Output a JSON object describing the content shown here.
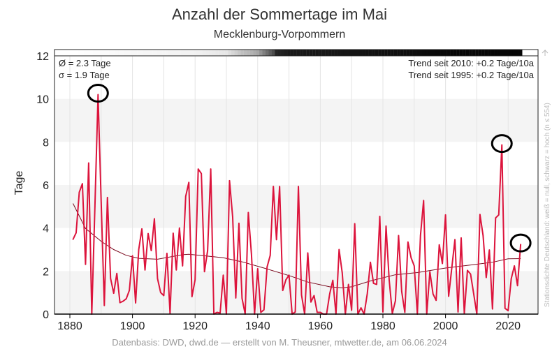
{
  "title": "Anzahl der Sommertage im Mai",
  "subtitle": "Mecklenburg-Vorpommern",
  "footer": "Datenbasis: DWD, dwd.de — erstellt von M. Theusner, mtwetter.de, am 06.06.2024",
  "side_note": "Stationsdichte Deutschland: weiß = null, schwarz = hoch (n ≤ 554)",
  "stats": {
    "mean": "Ø = 2.3 Tage",
    "sd": "σ = 1.9 Tage"
  },
  "trends": {
    "t2010": "Trend seit 2010: +0.2 Tage/10a",
    "t1995": "Trend seit 1995: +0.2 Tage/10a"
  },
  "colors": {
    "series": "#dc143c",
    "trend": "#7a0a1e",
    "band": "#f4f4f4",
    "grid": "#e4e4e4",
    "circle": "#000000"
  },
  "chart_data": {
    "type": "line",
    "title": "Anzahl der Sommertage im Mai",
    "ylabel": "Tage",
    "xlabel": "",
    "xlim": [
      1876,
      2030
    ],
    "ylim": [
      0,
      12
    ],
    "xticks": [
      1880,
      1900,
      1920,
      1940,
      1960,
      1980,
      2000,
      2020
    ],
    "yticks": [
      0,
      2,
      4,
      6,
      8,
      10,
      12
    ],
    "x_start": 1881,
    "values": [
      3.47,
      3.78,
      5.66,
      6.06,
      2.31,
      7.02,
      0,
      5.0,
      10.2,
      5.2,
      0.4,
      5.42,
      1.66,
      0.97,
      1.89,
      0.53,
      0.6,
      0.71,
      1.1,
      2.71,
      0.52,
      3.0,
      3.96,
      2.05,
      3.74,
      2.95,
      4.43,
      1.65,
      1.0,
      0.86,
      2.82,
      0.03,
      3.76,
      2.05,
      4.0,
      2.24,
      5.47,
      6.12,
      0.81,
      1.59,
      6.74,
      6.53,
      1.97,
      2.95,
      6.74,
      0,
      0.08,
      0.05,
      1.81,
      0,
      6.2,
      4.52,
      0.75,
      4.22,
      0.73,
      0,
      4.72,
      2.79,
      0,
      2.11,
      0.08,
      0.2,
      2.19,
      2.73,
      5.93,
      3.46,
      5.93,
      1.1,
      1.59,
      1.81,
      0,
      0.1,
      5.93,
      0.89,
      0,
      2.84,
      0.56,
      0.86,
      0.08,
      0.08,
      0,
      0,
      0.94,
      1.57,
      0,
      3.0,
      1.92,
      0,
      1.38,
      0.18,
      4.2,
      0,
      0.29,
      0,
      0.94,
      2.41,
      1.43,
      1.38,
      4.54,
      0.1,
      4.09,
      1.59,
      0.03,
      0.62,
      3.65,
      1.05,
      0.08,
      3.35,
      2.62,
      2.24,
      0,
      3.65,
      5.28,
      0,
      1.97,
      0.94,
      0.64,
      3.22,
      2.35,
      4.61,
      0.83,
      2.14,
      3.46,
      0.1,
      3.54,
      0.02,
      2.03,
      1.86,
      0.94,
      0,
      4.63,
      3.65,
      1.7,
      2.98,
      0.24,
      4.47,
      4.61,
      7.86,
      0.27,
      0.16,
      1.65,
      2.24,
      1.32,
      3.24
    ],
    "trend_curve": [
      [
        1881,
        5.14
      ],
      [
        1885,
        3.98
      ],
      [
        1890,
        3.38
      ],
      [
        1894,
        3.0
      ],
      [
        1898,
        2.73
      ],
      [
        1902,
        2.59
      ],
      [
        1908,
        2.55
      ],
      [
        1916,
        2.76
      ],
      [
        1918,
        2.78
      ],
      [
        1925,
        2.68
      ],
      [
        1929,
        2.62
      ],
      [
        1935,
        2.43
      ],
      [
        1942,
        2.14
      ],
      [
        1950,
        1.79
      ],
      [
        1956,
        1.49
      ],
      [
        1963,
        1.27
      ],
      [
        1967,
        1.22
      ],
      [
        1970,
        1.27
      ],
      [
        1976,
        1.54
      ],
      [
        1984,
        1.83
      ],
      [
        1991,
        1.93
      ],
      [
        2000,
        2.14
      ],
      [
        2009,
        2.3
      ],
      [
        2015,
        2.41
      ],
      [
        2020,
        2.57
      ],
      [
        2024,
        2.58
      ]
    ],
    "highlighted_years": [
      1889,
      2018,
      2024
    ],
    "station_density": [
      [
        1881,
        0.0
      ],
      [
        1900,
        0.03
      ],
      [
        1920,
        0.05
      ],
      [
        1930,
        0.1
      ],
      [
        1935,
        0.25
      ],
      [
        1938,
        0.3
      ],
      [
        1940,
        0.35
      ],
      [
        1942,
        0.5
      ],
      [
        1945,
        0.7
      ],
      [
        1946,
        0.85
      ],
      [
        1950,
        0.9
      ],
      [
        1970,
        0.92
      ],
      [
        1990,
        0.95
      ],
      [
        2000,
        0.97
      ],
      [
        2024,
        0.98
      ]
    ]
  }
}
